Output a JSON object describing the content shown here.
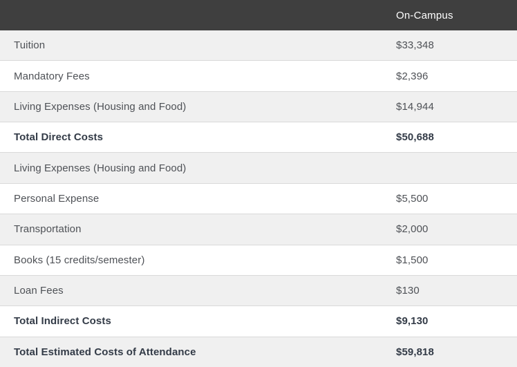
{
  "header": {
    "on_campus_label": "On-Campus"
  },
  "rows": [
    {
      "label": "Tuition",
      "value": "$33,348",
      "bold": false
    },
    {
      "label": "Mandatory Fees",
      "value": "$2,396",
      "bold": false
    },
    {
      "label": "Living Expenses (Housing and Food)",
      "value": "$14,944",
      "bold": false
    },
    {
      "label": "Total Direct Costs",
      "value": "$50,688",
      "bold": true
    },
    {
      "label": "Living Expenses (Housing and Food)",
      "value": "",
      "bold": false
    },
    {
      "label": "Personal Expense",
      "value": "$5,500",
      "bold": false
    },
    {
      "label": "Transportation",
      "value": "$2,000",
      "bold": false
    },
    {
      "label": "Books (15 credits/semester)",
      "value": "$1,500",
      "bold": false
    },
    {
      "label": "Loan Fees",
      "value": "$130",
      "bold": false
    },
    {
      "label": "Total Indirect Costs",
      "value": "$9,130",
      "bold": true
    },
    {
      "label": "Total Estimated Costs of Attendance",
      "value": "$59,818",
      "bold": true
    }
  ],
  "colors": {
    "header_bg": "#3f3f3f",
    "header_text": "#ffffff",
    "row_bg": "#ffffff",
    "row_alt_bg": "#f0f0f0",
    "border": "#d9d9d9",
    "text": "#4e5156",
    "bold_text": "#333b47"
  }
}
